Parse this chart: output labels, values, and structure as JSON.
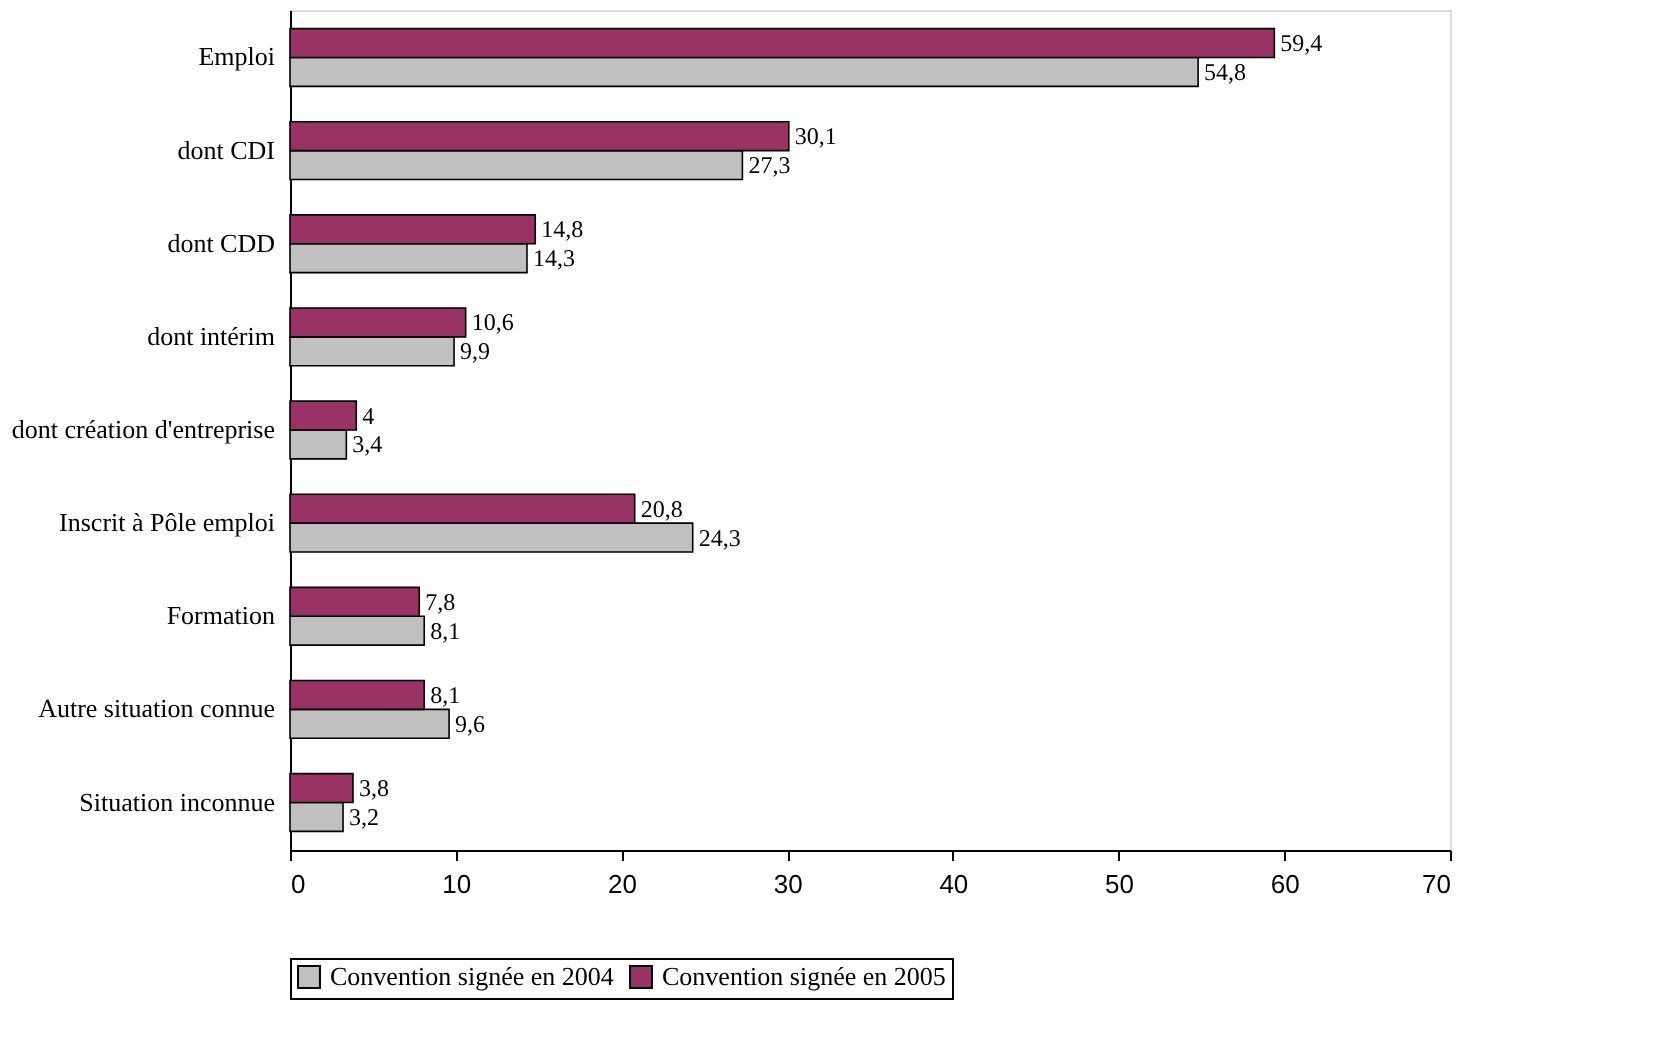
{
  "chart_data": {
    "type": "bar",
    "orientation": "horizontal",
    "categories": [
      "Emploi",
      "dont CDI",
      "dont CDD",
      "dont intérim",
      "dont création d'entreprise",
      "Inscrit à Pôle emploi",
      "Formation",
      "Autre situation connue",
      "Situation inconnue"
    ],
    "series": [
      {
        "name": "Convention signée en 2004",
        "color": "#c0c0c0",
        "values": [
          54.8,
          27.3,
          14.3,
          9.9,
          3.4,
          24.3,
          8.1,
          9.6,
          3.2
        ],
        "value_labels": [
          "54,8",
          "27,3",
          "14,3",
          "9,9",
          "3,4",
          "24,3",
          "8,1",
          "9,6",
          "3,2"
        ]
      },
      {
        "name": "Convention signée en 2005",
        "color": "#993366",
        "values": [
          59.4,
          30.1,
          14.8,
          10.6,
          4,
          20.8,
          7.8,
          8.1,
          3.8
        ],
        "value_labels": [
          "59,4",
          "30,1",
          "14,8",
          "10,6",
          "4",
          "20,8",
          "7,8",
          "8,1",
          "3,8"
        ]
      }
    ],
    "xlim": [
      0,
      70
    ],
    "xticks": [
      0,
      10,
      20,
      30,
      40,
      50,
      60,
      70
    ],
    "grid": false,
    "legend": "bottom"
  }
}
